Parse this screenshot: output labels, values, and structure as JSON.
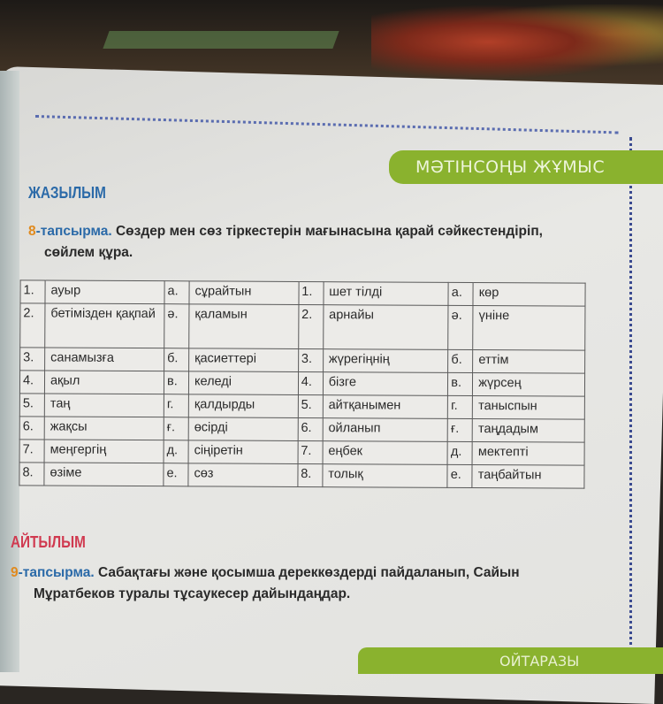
{
  "banner": "МӘТІНСОҢЫ ЖҰМЫС",
  "section1": "ЖАЗЫЛЫМ",
  "task8": {
    "num": "8-тапсырма.",
    "text": "Сөздер мен сөз тіркестерін мағынасына қарай сәйкестендіріп,",
    "text2": "сөйлем құра."
  },
  "table": [
    [
      "1.",
      "ауыр",
      "а.",
      "сұрайтын",
      "1.",
      "шет тілді",
      "а.",
      "көр"
    ],
    [
      "2.",
      "бетімізден қақпай",
      "ә.",
      "қаламын",
      "2.",
      "арнайы",
      "ә.",
      "үніне"
    ],
    [
      "3.",
      "санамызға",
      "б.",
      "қасиеттері",
      "3.",
      "жүрегіңнің",
      "б.",
      "еттім"
    ],
    [
      "4.",
      "ақыл",
      "в.",
      "келеді",
      "4.",
      "бізге",
      "в.",
      "жүрсең"
    ],
    [
      "5.",
      "таң",
      "г.",
      "қалдырды",
      "5.",
      "айтқанымен",
      "г.",
      "таныспын"
    ],
    [
      "6.",
      "жақсы",
      "ғ.",
      "өсірді",
      "6.",
      "ойланып",
      "ғ.",
      "таңдадым"
    ],
    [
      "7.",
      "меңгергің",
      "д.",
      "сіңіретін",
      "7.",
      "еңбек",
      "д.",
      "мектепті"
    ],
    [
      "8.",
      "өзіме",
      "е.",
      "сөз",
      "8.",
      "толық",
      "е.",
      "таңбайтын"
    ]
  ],
  "section2": "АЙТЫЛЫМ",
  "task9": {
    "num": "9-тапсырма.",
    "text": "Сабақтағы және қосымша дереккөздерді пайдаланып, Сайын",
    "text2": "Мұратбеков туралы тұсаукесер дайындаңдар."
  },
  "bottom_tab": "ОЙТАРАЗЫ",
  "colors": {
    "accent_green": "#8ab22e",
    "heading_blue": "#2b6aa8",
    "heading_red": "#d03a50",
    "task_orange": "#e08a1e"
  }
}
